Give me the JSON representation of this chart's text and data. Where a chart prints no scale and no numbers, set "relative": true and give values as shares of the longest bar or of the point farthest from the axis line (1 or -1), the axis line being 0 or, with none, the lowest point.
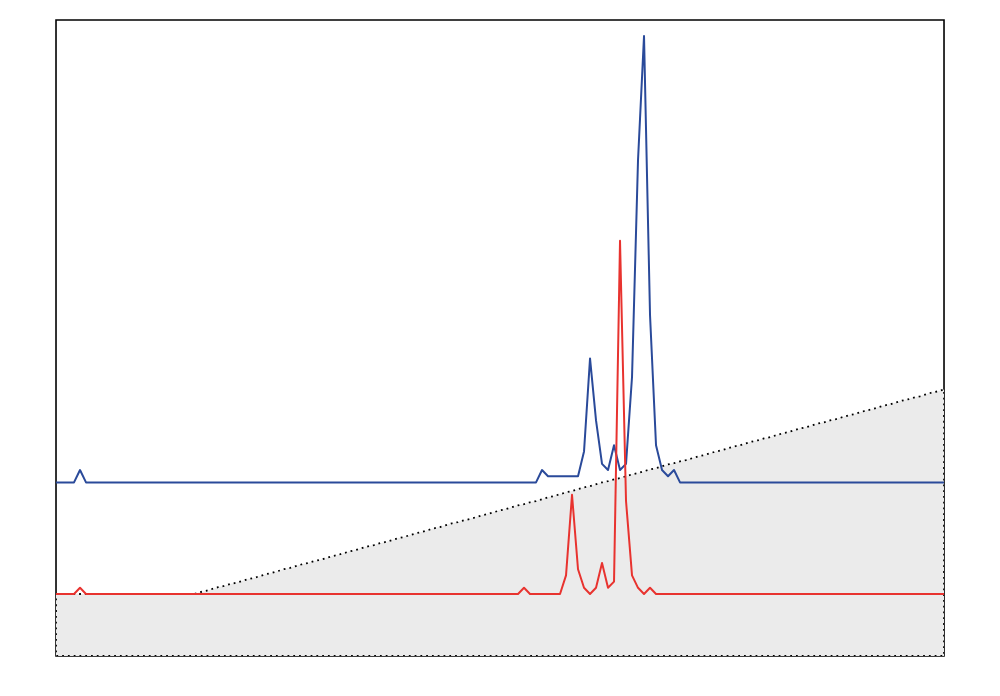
{
  "chart_data": {
    "type": "line",
    "relative": true,
    "categories": [
      null,
      null,
      null,
      null,
      null,
      null,
      null,
      null,
      null,
      null,
      null,
      null,
      null,
      null,
      null,
      null,
      null,
      null,
      null,
      null,
      null,
      null,
      null,
      null,
      null,
      null,
      null,
      null,
      null,
      null,
      null,
      null,
      null,
      null,
      null,
      null,
      null,
      null,
      null,
      null,
      null,
      null,
      null,
      null,
      null,
      null,
      null,
      null,
      null,
      null,
      null,
      null,
      null,
      null,
      null,
      null,
      null,
      null,
      null,
      null,
      null,
      null,
      null,
      null,
      null,
      null,
      null,
      null,
      null,
      null,
      null,
      null,
      null,
      null,
      null,
      null,
      null,
      null,
      null,
      null,
      null,
      null,
      null,
      null,
      null,
      null,
      null,
      null,
      null,
      null,
      null,
      null,
      null,
      null,
      null,
      null,
      null,
      null,
      null,
      null,
      null,
      null,
      null,
      null,
      null,
      null,
      null,
      null,
      null,
      null,
      null,
      null,
      null,
      null,
      null,
      null,
      null,
      null,
      null,
      null,
      null,
      null,
      null,
      null,
      null,
      null,
      null,
      null,
      null,
      null,
      null,
      null,
      null,
      null,
      null,
      null,
      null,
      null,
      null,
      null,
      null,
      null,
      null,
      null,
      null,
      null,
      null,
      null,
      null
    ],
    "series": [
      {
        "type": "area",
        "color": "#ebebeb",
        "line_style": "dotted",
        "values": [
          0.1,
          0.1,
          0.1,
          0.1,
          0.1,
          0.1,
          0.1,
          0.1,
          0.1,
          0.1,
          0.1,
          0.1,
          0.1,
          0.1,
          0.1,
          0.1,
          0.1,
          0.1,
          0.1,
          0.1,
          0.1,
          0.1,
          0.1,
          0.1,
          0.103,
          0.105,
          0.108,
          0.111,
          0.113,
          0.116,
          0.118,
          0.121,
          0.124,
          0.126,
          0.129,
          0.132,
          0.134,
          0.137,
          0.14,
          0.142,
          0.145,
          0.148,
          0.15,
          0.153,
          0.155,
          0.158,
          0.161,
          0.163,
          0.166,
          0.169,
          0.171,
          0.174,
          0.177,
          0.179,
          0.182,
          0.184,
          0.187,
          0.19,
          0.192,
          0.195,
          0.198,
          0.2,
          0.203,
          0.206,
          0.208,
          0.211,
          0.214,
          0.216,
          0.219,
          0.221,
          0.224,
          0.227,
          0.229,
          0.232,
          0.235,
          0.237,
          0.24,
          0.243,
          0.245,
          0.248,
          0.25,
          0.253,
          0.256,
          0.258,
          0.261,
          0.264,
          0.266,
          0.269,
          0.272,
          0.274,
          0.277,
          0.28,
          0.282,
          0.285,
          0.287,
          0.29,
          0.293,
          0.295,
          0.298,
          0.301,
          0.303,
          0.306,
          0.309,
          0.311,
          0.314,
          0.316,
          0.319,
          0.322,
          0.324,
          0.327,
          0.33,
          0.332,
          0.335,
          0.338,
          0.34,
          0.343,
          0.346,
          0.348,
          0.351,
          0.353,
          0.356,
          0.359,
          0.361,
          0.364,
          0.367,
          0.369,
          0.372,
          0.375,
          0.377,
          0.38,
          0.382,
          0.385,
          0.388,
          0.39,
          0.393,
          0.396,
          0.398,
          0.401,
          0.404,
          0.406,
          0.409,
          0.412,
          0.414,
          0.417,
          0.419,
          0.422,
          0.425,
          0.427,
          0.43
        ]
      },
      {
        "color": "#2a4a9a",
        "values": [
          0.28,
          0.28,
          0.28,
          0.28,
          0.3,
          0.28,
          0.28,
          0.28,
          0.28,
          0.28,
          0.28,
          0.28,
          0.28,
          0.28,
          0.28,
          0.28,
          0.28,
          0.28,
          0.28,
          0.28,
          0.28,
          0.28,
          0.28,
          0.28,
          0.28,
          0.28,
          0.28,
          0.28,
          0.28,
          0.28,
          0.28,
          0.28,
          0.28,
          0.28,
          0.28,
          0.28,
          0.28,
          0.28,
          0.28,
          0.28,
          0.28,
          0.28,
          0.28,
          0.28,
          0.28,
          0.28,
          0.28,
          0.28,
          0.28,
          0.28,
          0.28,
          0.28,
          0.28,
          0.28,
          0.28,
          0.28,
          0.28,
          0.28,
          0.28,
          0.28,
          0.28,
          0.28,
          0.28,
          0.28,
          0.28,
          0.28,
          0.28,
          0.28,
          0.28,
          0.28,
          0.28,
          0.28,
          0.28,
          0.28,
          0.28,
          0.28,
          0.28,
          0.28,
          0.28,
          0.28,
          0.28,
          0.3,
          0.29,
          0.29,
          0.29,
          0.29,
          0.29,
          0.29,
          0.33,
          0.48,
          0.38,
          0.31,
          0.3,
          0.34,
          0.3,
          0.31,
          0.45,
          0.8,
          1.0,
          0.55,
          0.34,
          0.3,
          0.29,
          0.3,
          0.28,
          0.28,
          0.28,
          0.28,
          0.28,
          0.28,
          0.28,
          0.28,
          0.28,
          0.28,
          0.28,
          0.28,
          0.28,
          0.28,
          0.28,
          0.28,
          0.28,
          0.28,
          0.28,
          0.28,
          0.28,
          0.28,
          0.28,
          0.28,
          0.28,
          0.28,
          0.28,
          0.28,
          0.28,
          0.28,
          0.28,
          0.28,
          0.28,
          0.28,
          0.28,
          0.28,
          0.28,
          0.28,
          0.28,
          0.28,
          0.28,
          0.28,
          0.28,
          0.28,
          0.28
        ]
      },
      {
        "color": "#e8332f",
        "values": [
          0.1,
          0.1,
          0.1,
          0.1,
          0.11,
          0.1,
          0.1,
          0.1,
          0.1,
          0.1,
          0.1,
          0.1,
          0.1,
          0.1,
          0.1,
          0.1,
          0.1,
          0.1,
          0.1,
          0.1,
          0.1,
          0.1,
          0.1,
          0.1,
          0.1,
          0.1,
          0.1,
          0.1,
          0.1,
          0.1,
          0.1,
          0.1,
          0.1,
          0.1,
          0.1,
          0.1,
          0.1,
          0.1,
          0.1,
          0.1,
          0.1,
          0.1,
          0.1,
          0.1,
          0.1,
          0.1,
          0.1,
          0.1,
          0.1,
          0.1,
          0.1,
          0.1,
          0.1,
          0.1,
          0.1,
          0.1,
          0.1,
          0.1,
          0.1,
          0.1,
          0.1,
          0.1,
          0.1,
          0.1,
          0.1,
          0.1,
          0.1,
          0.1,
          0.1,
          0.1,
          0.1,
          0.1,
          0.1,
          0.1,
          0.1,
          0.1,
          0.1,
          0.1,
          0.11,
          0.1,
          0.1,
          0.1,
          0.1,
          0.1,
          0.1,
          0.13,
          0.26,
          0.14,
          0.11,
          0.1,
          0.11,
          0.15,
          0.11,
          0.12,
          0.67,
          0.25,
          0.13,
          0.11,
          0.1,
          0.11,
          0.1,
          0.1,
          0.1,
          0.1,
          0.1,
          0.1,
          0.1,
          0.1,
          0.1,
          0.1,
          0.1,
          0.1,
          0.1,
          0.1,
          0.1,
          0.1,
          0.1,
          0.1,
          0.1,
          0.1,
          0.1,
          0.1,
          0.1,
          0.1,
          0.1,
          0.1,
          0.1,
          0.1,
          0.1,
          0.1,
          0.1,
          0.1,
          0.1,
          0.1,
          0.1,
          0.1,
          0.1,
          0.1,
          0.1,
          0.1,
          0.1,
          0.1,
          0.1,
          0.1,
          0.1,
          0.1,
          0.1,
          0.1,
          0.1
        ]
      }
    ]
  }
}
